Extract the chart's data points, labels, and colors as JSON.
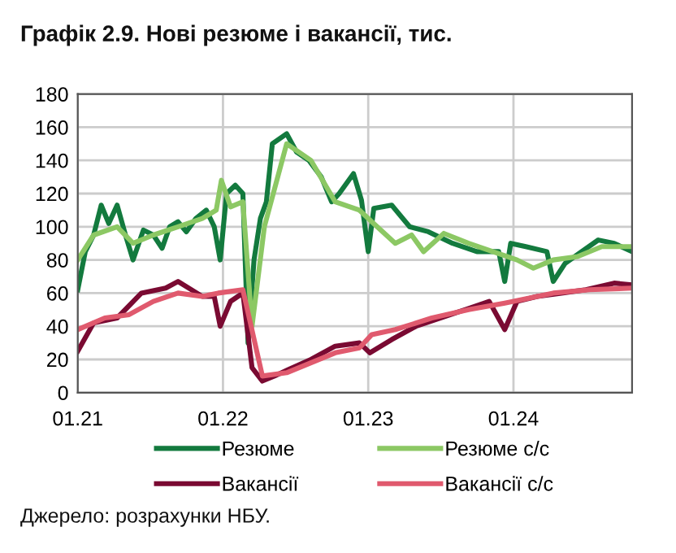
{
  "chart_data": {
    "type": "line",
    "title": "Графік 2.9. Нові резюме і вакансії, тис.",
    "xlim": [
      "2021-01-01",
      "2024-10-25"
    ],
    "xticks": [
      {
        "value": "2021-01-01",
        "label": "01.21"
      },
      {
        "value": "2022-01-01",
        "label": "01.22"
      },
      {
        "value": "2023-01-01",
        "label": "01.23"
      },
      {
        "value": "2024-01-01",
        "label": "01.24"
      }
    ],
    "ylim": [
      0,
      180
    ],
    "yticks": [
      0,
      20,
      40,
      60,
      80,
      100,
      120,
      140,
      160,
      180
    ],
    "grid": true,
    "legend": "bottom",
    "marker": "none",
    "line_style": "solid",
    "annotations": [
      "Джерело: розрахунки НБУ."
    ],
    "series": [
      {
        "name": "Резюме",
        "color": "#137a3e",
        "x": [
          "2021-01-01",
          "2021-01-20",
          "2021-02-10",
          "2021-03-01",
          "2021-03-20",
          "2021-04-10",
          "2021-05-01",
          "2021-05-20",
          "2021-06-15",
          "2021-07-10",
          "2021-08-01",
          "2021-08-20",
          "2021-09-10",
          "2021-10-01",
          "2021-10-25",
          "2021-11-20",
          "2021-12-10",
          "2021-12-25",
          "2022-01-10",
          "2022-02-01",
          "2022-02-20",
          "2022-03-05",
          "2022-03-20",
          "2022-04-05",
          "2022-04-20",
          "2022-05-05",
          "2022-06-10",
          "2022-07-05",
          "2022-08-05",
          "2022-09-05",
          "2022-10-01",
          "2022-10-20",
          "2022-11-25",
          "2022-12-15",
          "2023-01-01",
          "2023-01-15",
          "2023-03-01",
          "2023-04-15",
          "2023-06-01",
          "2023-08-01",
          "2023-10-01",
          "2023-11-25",
          "2023-12-10",
          "2023-12-25",
          "2024-02-01",
          "2024-03-25",
          "2024-04-10",
          "2024-05-10",
          "2024-06-20",
          "2024-08-01",
          "2024-09-10",
          "2024-10-25"
        ],
        "values": [
          62,
          85,
          95,
          113,
          102,
          113,
          95,
          80,
          98,
          95,
          87,
          100,
          103,
          97,
          105,
          110,
          100,
          80,
          120,
          125,
          120,
          30,
          80,
          105,
          115,
          150,
          156,
          145,
          140,
          130,
          115,
          120,
          132,
          116,
          85,
          111,
          113,
          100,
          97,
          90,
          85,
          85,
          67,
          90,
          88,
          85,
          67,
          78,
          85,
          92,
          90,
          85
        ]
      },
      {
        "name": "Вакансії",
        "color": "#7a0a32",
        "x": [
          "2021-01-01",
          "2021-02-10",
          "2021-04-10",
          "2021-06-10",
          "2021-08-10",
          "2021-09-10",
          "2021-11-10",
          "2021-12-10",
          "2021-12-25",
          "2022-01-20",
          "2022-02-20",
          "2022-03-15",
          "2022-04-10",
          "2022-05-10",
          "2022-06-15",
          "2022-08-10",
          "2022-10-10",
          "2022-12-10",
          "2023-01-05",
          "2023-03-01",
          "2023-05-01",
          "2023-07-01",
          "2023-09-01",
          "2023-11-01",
          "2023-12-10",
          "2024-01-10",
          "2024-03-01",
          "2024-05-01",
          "2024-07-01",
          "2024-09-10",
          "2024-10-25"
        ],
        "values": [
          25,
          42,
          45,
          60,
          63,
          67,
          58,
          58,
          40,
          55,
          60,
          15,
          7,
          10,
          14,
          20,
          28,
          30,
          24,
          32,
          40,
          45,
          50,
          55,
          38,
          55,
          58,
          60,
          62,
          66,
          65
        ]
      },
      {
        "name": "Резюме с/с",
        "color": "#8cc864",
        "x": [
          "2021-01-01",
          "2021-02-10",
          "2021-04-10",
          "2021-05-20",
          "2021-07-10",
          "2021-09-10",
          "2021-11-10",
          "2021-12-15",
          "2021-12-28",
          "2022-01-20",
          "2022-02-20",
          "2022-03-15",
          "2022-04-15",
          "2022-06-10",
          "2022-08-10",
          "2022-10-10",
          "2022-12-10",
          "2023-01-10",
          "2023-03-10",
          "2023-04-20",
          "2023-05-20",
          "2023-07-10",
          "2023-09-10",
          "2023-11-10",
          "2024-01-10",
          "2024-02-20",
          "2024-04-10",
          "2024-06-10",
          "2024-08-10",
          "2024-10-25"
        ],
        "values": [
          80,
          95,
          100,
          90,
          95,
          100,
          105,
          110,
          128,
          112,
          115,
          40,
          100,
          150,
          140,
          115,
          110,
          103,
          90,
          95,
          85,
          96,
          90,
          85,
          80,
          75,
          80,
          82,
          88,
          88
        ]
      },
      {
        "name": "Вакансії с/с",
        "color": "#e05a6e",
        "x": [
          "2021-01-01",
          "2021-03-10",
          "2021-05-10",
          "2021-07-10",
          "2021-09-10",
          "2021-11-10",
          "2021-12-20",
          "2022-02-20",
          "2022-04-10",
          "2022-06-10",
          "2022-08-10",
          "2022-10-10",
          "2022-12-10",
          "2023-01-10",
          "2023-03-10",
          "2023-06-10",
          "2023-09-10",
          "2023-12-10",
          "2024-02-10",
          "2024-04-10",
          "2024-07-10",
          "2024-10-25"
        ],
        "values": [
          38,
          45,
          47,
          55,
          60,
          58,
          60,
          62,
          10,
          12,
          18,
          24,
          27,
          35,
          38,
          45,
          50,
          54,
          57,
          60,
          62,
          63
        ]
      }
    ]
  }
}
